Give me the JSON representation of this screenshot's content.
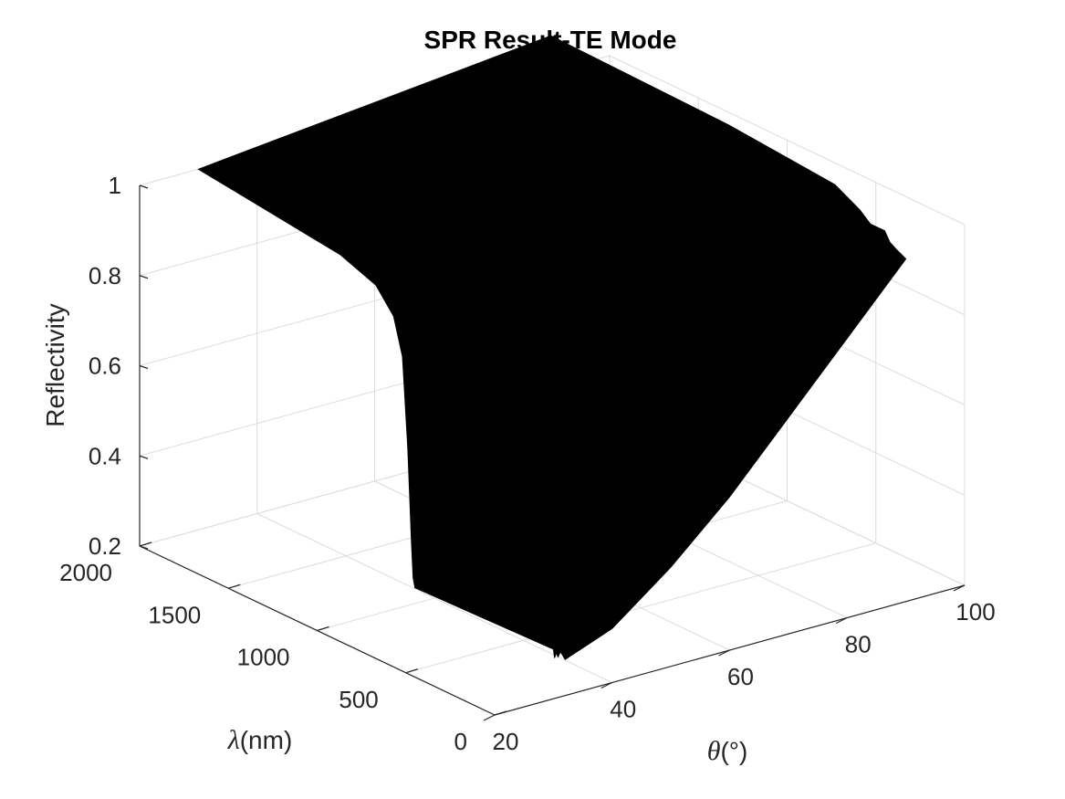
{
  "chart_data": {
    "type": "surface3d",
    "title": "SPR Result-TE Mode",
    "zlabel": "Reflectivity",
    "theta_label_symbol": "θ",
    "theta_label_unit": "(°)",
    "lambda_label_symbol": "λ",
    "lambda_label_unit": "(nm)",
    "theta_range": [
      20,
      100
    ],
    "lambda_range": [
      0,
      2000
    ],
    "z_range": [
      0.2,
      1
    ],
    "theta_ticks": [
      "20",
      "40",
      "60",
      "80",
      "100"
    ],
    "lambda_ticks": [
      "0",
      "500",
      "1000",
      "1500",
      "2000"
    ],
    "z_ticks": [
      "0.2",
      "0.4",
      "0.6",
      "0.8",
      "1"
    ],
    "surface_color": "#000000",
    "grid": true,
    "boundary": {
      "lambda_min_edge": [
        {
          "theta": 30,
          "z": 0.31
        },
        {
          "theta": 30.2,
          "z": 0.29
        },
        {
          "theta": 30.5,
          "z": 0.3
        },
        {
          "theta": 30.8,
          "z": 0.29
        },
        {
          "theta": 31.2,
          "z": 0.3
        },
        {
          "theta": 32,
          "z": 0.28
        },
        {
          "theta": 40,
          "z": 0.32
        },
        {
          "theta": 50,
          "z": 0.42
        },
        {
          "theta": 60,
          "z": 0.54
        },
        {
          "theta": 70,
          "z": 0.68
        },
        {
          "theta": 80,
          "z": 0.82
        },
        {
          "theta": 90,
          "z": 0.96
        }
      ],
      "theta_max_edge": [
        {
          "lambda": 0,
          "z": 0.96
        },
        {
          "lambda": 50,
          "z": 0.97
        },
        {
          "lambda": 90,
          "z": 0.98
        },
        {
          "lambda": 120,
          "z": 1.0
        },
        {
          "lambda": 150,
          "z": 1.0
        },
        {
          "lambda": 200,
          "z": 1.0
        },
        {
          "lambda": 260,
          "z": 1.02
        },
        {
          "lambda": 400,
          "z": 1.05
        },
        {
          "lambda": 1000,
          "z": 1.07
        },
        {
          "lambda": 2000,
          "z": 1.08
        }
      ],
      "lambda_max_edge": [
        {
          "theta": 90,
          "z": 1.08
        },
        {
          "theta": 30,
          "z": 1.0
        }
      ],
      "theta_min_edge": [
        {
          "lambda": 2000,
          "z": 1.0
        },
        {
          "lambda": 1600,
          "z": 0.98
        },
        {
          "lambda": 1200,
          "z": 0.96
        },
        {
          "lambda": 1000,
          "z": 0.93
        },
        {
          "lambda": 900,
          "z": 0.88
        },
        {
          "lambda": 850,
          "z": 0.8
        },
        {
          "lambda": 820,
          "z": 0.6
        },
        {
          "lambda": 800,
          "z": 0.4
        },
        {
          "lambda": 790,
          "z": 0.32
        },
        {
          "lambda": 780,
          "z": 0.3
        },
        {
          "lambda": 0,
          "z": 0.31
        }
      ]
    }
  }
}
